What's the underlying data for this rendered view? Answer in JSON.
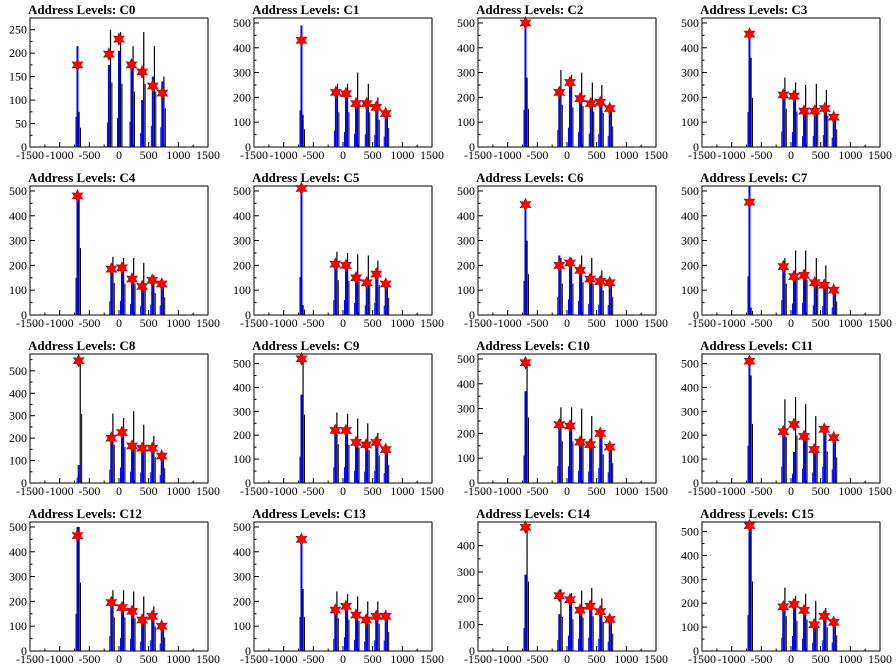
{
  "chart_data": [
    {
      "type": "histogram",
      "title": "Address Levels: C0",
      "ylim": [
        0,
        275
      ],
      "yticks": [
        0,
        50,
        100,
        150,
        200,
        250
      ],
      "xlim": [
        -1500,
        1500
      ],
      "xticks": [
        -1500,
        -1000,
        -500,
        0,
        500,
        1000,
        1500
      ],
      "peaks": [
        {
          "x": -700,
          "blue": 215,
          "black": 75,
          "marker": 175
        },
        {
          "x": -170,
          "blue": 175,
          "black": 250,
          "marker": 198
        },
        {
          "x": 0,
          "blue": 205,
          "black": 245,
          "marker": 230
        },
        {
          "x": 210,
          "blue": 180,
          "black": 215,
          "marker": 175
        },
        {
          "x": 390,
          "blue": 100,
          "black": 245,
          "marker": 160
        },
        {
          "x": 570,
          "blue": 150,
          "black": 215,
          "marker": 130
        },
        {
          "x": 730,
          "blue": 140,
          "black": 150,
          "marker": 115
        }
      ]
    },
    {
      "type": "histogram",
      "title": "Address Levels: C1",
      "ylim": [
        0,
        520
      ],
      "yticks": [
        0,
        100,
        200,
        300,
        400,
        500
      ],
      "xlim": [
        -1500,
        1500
      ],
      "xticks": [
        -1500,
        -1000,
        -500,
        0,
        500,
        1000,
        1500
      ],
      "peaks": [
        {
          "x": -700,
          "blue": 490,
          "black": 130,
          "marker": 430
        },
        {
          "x": -120,
          "blue": 220,
          "black": 255,
          "marker": 220
        },
        {
          "x": 50,
          "blue": 200,
          "black": 255,
          "marker": 215
        },
        {
          "x": 220,
          "blue": 180,
          "black": 300,
          "marker": 175
        },
        {
          "x": 400,
          "blue": 170,
          "black": 255,
          "marker": 175
        },
        {
          "x": 560,
          "blue": 160,
          "black": 200,
          "marker": 160
        },
        {
          "x": 720,
          "blue": 140,
          "black": 140,
          "marker": 135
        }
      ]
    },
    {
      "type": "histogram",
      "title": "Address Levels: C2",
      "ylim": [
        0,
        520
      ],
      "yticks": [
        0,
        100,
        200,
        300,
        400,
        500
      ],
      "xlim": [
        -1500,
        1500
      ],
      "xticks": [
        -1500,
        -1000,
        -500,
        0,
        500,
        1000,
        1500
      ],
      "peaks": [
        {
          "x": -700,
          "blue": 500,
          "black": 280,
          "marker": 500
        },
        {
          "x": -130,
          "blue": 230,
          "black": 310,
          "marker": 220
        },
        {
          "x": 50,
          "blue": 260,
          "black": 290,
          "marker": 260
        },
        {
          "x": 220,
          "blue": 200,
          "black": 300,
          "marker": 195
        },
        {
          "x": 400,
          "blue": 180,
          "black": 260,
          "marker": 175
        },
        {
          "x": 560,
          "blue": 175,
          "black": 250,
          "marker": 180
        },
        {
          "x": 720,
          "blue": 150,
          "black": 150,
          "marker": 155
        }
      ]
    },
    {
      "type": "histogram",
      "title": "Address Levels: C3",
      "ylim": [
        0,
        520
      ],
      "yticks": [
        0,
        100,
        200,
        300,
        400,
        500
      ],
      "xlim": [
        -1500,
        1500
      ],
      "xticks": [
        -1500,
        -1000,
        -500,
        0,
        500,
        1000,
        1500
      ],
      "peaks": [
        {
          "x": -700,
          "blue": 470,
          "black": 360,
          "marker": 455
        },
        {
          "x": -130,
          "blue": 210,
          "black": 280,
          "marker": 210
        },
        {
          "x": 50,
          "blue": 200,
          "black": 260,
          "marker": 205
        },
        {
          "x": 220,
          "blue": 145,
          "black": 250,
          "marker": 145
        },
        {
          "x": 400,
          "blue": 150,
          "black": 255,
          "marker": 145
        },
        {
          "x": 570,
          "blue": 160,
          "black": 230,
          "marker": 155
        },
        {
          "x": 720,
          "blue": 125,
          "black": 130,
          "marker": 120
        }
      ]
    },
    {
      "type": "histogram",
      "title": "Address Levels: C4",
      "ylim": [
        0,
        520
      ],
      "yticks": [
        0,
        100,
        200,
        300,
        400,
        500
      ],
      "xlim": [
        -1500,
        1500
      ],
      "xticks": [
        -1500,
        -1000,
        -500,
        0,
        500,
        1000,
        1500
      ],
      "peaks": [
        {
          "x": -700,
          "blue": 500,
          "black": 490,
          "marker": 480
        },
        {
          "x": -130,
          "blue": 185,
          "black": 235,
          "marker": 185
        },
        {
          "x": 50,
          "blue": 190,
          "black": 230,
          "marker": 190
        },
        {
          "x": 220,
          "blue": 150,
          "black": 230,
          "marker": 145
        },
        {
          "x": 390,
          "blue": 120,
          "black": 210,
          "marker": 115
        },
        {
          "x": 560,
          "blue": 140,
          "black": 160,
          "marker": 140
        },
        {
          "x": 720,
          "blue": 130,
          "black": 130,
          "marker": 125
        }
      ]
    },
    {
      "type": "histogram",
      "title": "Address Levels: C5",
      "ylim": [
        0,
        520
      ],
      "yticks": [
        0,
        100,
        200,
        300,
        400,
        500
      ],
      "xlim": [
        -1500,
        1500
      ],
      "xticks": [
        -1500,
        -1000,
        -500,
        0,
        500,
        1000,
        1500
      ],
      "peaks": [
        {
          "x": -700,
          "blue": 510,
          "black": 40,
          "marker": 510
        },
        {
          "x": -130,
          "blue": 200,
          "black": 255,
          "marker": 205
        },
        {
          "x": 50,
          "blue": 200,
          "black": 250,
          "marker": 200
        },
        {
          "x": 220,
          "blue": 160,
          "black": 245,
          "marker": 150
        },
        {
          "x": 400,
          "blue": 130,
          "black": 240,
          "marker": 130
        },
        {
          "x": 560,
          "blue": 165,
          "black": 220,
          "marker": 165
        },
        {
          "x": 720,
          "blue": 125,
          "black": 125,
          "marker": 125
        }
      ]
    },
    {
      "type": "histogram",
      "title": "Address Levels: C6",
      "ylim": [
        0,
        520
      ],
      "yticks": [
        0,
        100,
        200,
        300,
        400,
        500
      ],
      "xlim": [
        -1500,
        1500
      ],
      "xticks": [
        -1500,
        -1000,
        -500,
        0,
        500,
        1000,
        1500
      ],
      "peaks": [
        {
          "x": -700,
          "blue": 460,
          "black": 300,
          "marker": 445
        },
        {
          "x": -130,
          "blue": 240,
          "black": 230,
          "marker": 200
        },
        {
          "x": 50,
          "blue": 210,
          "black": 230,
          "marker": 210
        },
        {
          "x": 220,
          "blue": 190,
          "black": 240,
          "marker": 180
        },
        {
          "x": 390,
          "blue": 150,
          "black": 230,
          "marker": 145
        },
        {
          "x": 560,
          "blue": 140,
          "black": 180,
          "marker": 135
        },
        {
          "x": 720,
          "blue": 135,
          "black": 135,
          "marker": 130
        }
      ]
    },
    {
      "type": "histogram",
      "title": "Address Levels: C7",
      "ylim": [
        0,
        520
      ],
      "yticks": [
        0,
        100,
        200,
        300,
        400,
        500
      ],
      "xlim": [
        -1500,
        1500
      ],
      "xticks": [
        -1500,
        -1000,
        -500,
        0,
        500,
        1000,
        1500
      ],
      "peaks": [
        {
          "x": -700,
          "blue": 520,
          "black": 30,
          "marker": 455
        },
        {
          "x": -130,
          "blue": 200,
          "black": 230,
          "marker": 195
        },
        {
          "x": 50,
          "blue": 155,
          "black": 260,
          "marker": 155
        },
        {
          "x": 220,
          "blue": 165,
          "black": 260,
          "marker": 160
        },
        {
          "x": 400,
          "blue": 130,
          "black": 230,
          "marker": 130
        },
        {
          "x": 560,
          "blue": 120,
          "black": 200,
          "marker": 120
        },
        {
          "x": 720,
          "blue": 100,
          "black": 100,
          "marker": 100
        }
      ]
    },
    {
      "type": "histogram",
      "title": "Address Levels: C8",
      "ylim": [
        0,
        575
      ],
      "yticks": [
        0,
        100,
        200,
        300,
        400,
        500
      ],
      "xlim": [
        -1500,
        1500
      ],
      "xticks": [
        -1500,
        -1000,
        -500,
        0,
        500,
        1000,
        1500
      ],
      "peaks": [
        {
          "x": -680,
          "blue": 80,
          "black": 560,
          "marker": 545
        },
        {
          "x": -130,
          "blue": 200,
          "black": 310,
          "marker": 200
        },
        {
          "x": 50,
          "blue": 230,
          "black": 290,
          "marker": 225
        },
        {
          "x": 220,
          "blue": 170,
          "black": 320,
          "marker": 165
        },
        {
          "x": 390,
          "blue": 155,
          "black": 260,
          "marker": 155
        },
        {
          "x": 560,
          "blue": 160,
          "black": 210,
          "marker": 155
        },
        {
          "x": 720,
          "blue": 120,
          "black": 120,
          "marker": 120
        }
      ]
    },
    {
      "type": "histogram",
      "title": "Address Levels: C9",
      "ylim": [
        0,
        540
      ],
      "yticks": [
        0,
        100,
        200,
        300,
        400,
        500
      ],
      "xlim": [
        -1500,
        1500
      ],
      "xticks": [
        -1500,
        -1000,
        -500,
        0,
        500,
        1000,
        1500
      ],
      "peaks": [
        {
          "x": -700,
          "blue": 370,
          "black": 520,
          "marker": 520
        },
        {
          "x": -130,
          "blue": 220,
          "black": 295,
          "marker": 220
        },
        {
          "x": 50,
          "blue": 220,
          "black": 290,
          "marker": 220
        },
        {
          "x": 220,
          "blue": 170,
          "black": 270,
          "marker": 170
        },
        {
          "x": 390,
          "blue": 160,
          "black": 250,
          "marker": 160
        },
        {
          "x": 560,
          "blue": 170,
          "black": 210,
          "marker": 170
        },
        {
          "x": 720,
          "blue": 140,
          "black": 140,
          "marker": 140
        }
      ]
    },
    {
      "type": "histogram",
      "title": "Address Levels: C10",
      "ylim": [
        0,
        520
      ],
      "yticks": [
        0,
        100,
        200,
        300,
        400,
        500
      ],
      "xlim": [
        -1500,
        1500
      ],
      "xticks": [
        -1500,
        -1000,
        -500,
        0,
        500,
        1000,
        1500
      ],
      "peaks": [
        {
          "x": -700,
          "blue": 370,
          "black": 480,
          "marker": 485
        },
        {
          "x": -130,
          "blue": 230,
          "black": 305,
          "marker": 235
        },
        {
          "x": 50,
          "blue": 225,
          "black": 305,
          "marker": 230
        },
        {
          "x": 220,
          "blue": 165,
          "black": 300,
          "marker": 165
        },
        {
          "x": 390,
          "blue": 155,
          "black": 270,
          "marker": 155
        },
        {
          "x": 560,
          "blue": 200,
          "black": 210,
          "marker": 200
        },
        {
          "x": 720,
          "blue": 145,
          "black": 145,
          "marker": 145
        }
      ]
    },
    {
      "type": "histogram",
      "title": "Address Levels: C11",
      "ylim": [
        0,
        540
      ],
      "yticks": [
        0,
        100,
        200,
        300,
        400,
        500
      ],
      "xlim": [
        -1500,
        1500
      ],
      "xticks": [
        -1500,
        -1000,
        -500,
        0,
        500,
        1000,
        1500
      ],
      "peaks": [
        {
          "x": -700,
          "blue": 520,
          "black": 450,
          "marker": 510
        },
        {
          "x": -130,
          "blue": 230,
          "black": 350,
          "marker": 215
        },
        {
          "x": 50,
          "blue": 130,
          "black": 360,
          "marker": 245
        },
        {
          "x": 220,
          "blue": 200,
          "black": 330,
          "marker": 195
        },
        {
          "x": 390,
          "blue": 145,
          "black": 280,
          "marker": 140
        },
        {
          "x": 560,
          "blue": 230,
          "black": 240,
          "marker": 225
        },
        {
          "x": 720,
          "blue": 190,
          "black": 195,
          "marker": 190
        }
      ]
    },
    {
      "type": "histogram",
      "title": "Address Levels: C12",
      "ylim": [
        0,
        520
      ],
      "yticks": [
        0,
        100,
        200,
        300,
        400,
        500
      ],
      "xlim": [
        -1500,
        1500
      ],
      "xticks": [
        -1500,
        -1000,
        -500,
        0,
        500,
        1000,
        1500
      ],
      "peaks": [
        {
          "x": -700,
          "blue": 500,
          "black": 500,
          "marker": 465
        },
        {
          "x": -130,
          "blue": 200,
          "black": 245,
          "marker": 195
        },
        {
          "x": 50,
          "blue": 175,
          "black": 245,
          "marker": 175
        },
        {
          "x": 220,
          "blue": 165,
          "black": 240,
          "marker": 160
        },
        {
          "x": 390,
          "blue": 125,
          "black": 220,
          "marker": 125
        },
        {
          "x": 560,
          "blue": 145,
          "black": 180,
          "marker": 140
        },
        {
          "x": 720,
          "blue": 100,
          "black": 100,
          "marker": 100
        }
      ]
    },
    {
      "type": "histogram",
      "title": "Address Levels: C13",
      "ylim": [
        0,
        520
      ],
      "yticks": [
        0,
        100,
        200,
        300,
        400,
        500
      ],
      "xlim": [
        -1500,
        1500
      ],
      "xticks": [
        -1500,
        -1000,
        -500,
        0,
        500,
        1000,
        1500
      ],
      "peaks": [
        {
          "x": -700,
          "blue": 460,
          "black": 250,
          "marker": 450
        },
        {
          "x": -130,
          "blue": 165,
          "black": 240,
          "marker": 165
        },
        {
          "x": 50,
          "blue": 185,
          "black": 230,
          "marker": 180
        },
        {
          "x": 220,
          "blue": 150,
          "black": 220,
          "marker": 145
        },
        {
          "x": 390,
          "blue": 130,
          "black": 200,
          "marker": 125
        },
        {
          "x": 560,
          "blue": 145,
          "black": 200,
          "marker": 140
        },
        {
          "x": 720,
          "blue": 140,
          "black": 140,
          "marker": 140
        }
      ]
    },
    {
      "type": "histogram",
      "title": "Address Levels: C14",
      "ylim": [
        0,
        490
      ],
      "yticks": [
        0,
        100,
        200,
        300,
        400
      ],
      "xlim": [
        -1500,
        1500
      ],
      "xticks": [
        -1500,
        -1000,
        -500,
        0,
        500,
        1000,
        1500
      ],
      "peaks": [
        {
          "x": -700,
          "blue": 290,
          "black": 480,
          "marker": 470
        },
        {
          "x": -130,
          "blue": 140,
          "black": 235,
          "marker": 210
        },
        {
          "x": 50,
          "blue": 195,
          "black": 220,
          "marker": 195
        },
        {
          "x": 220,
          "blue": 155,
          "black": 230,
          "marker": 155
        },
        {
          "x": 390,
          "blue": 170,
          "black": 240,
          "marker": 170
        },
        {
          "x": 560,
          "blue": 155,
          "black": 200,
          "marker": 150
        },
        {
          "x": 720,
          "blue": 120,
          "black": 120,
          "marker": 120
        }
      ]
    },
    {
      "type": "histogram",
      "title": "Address Levels: C15",
      "ylim": [
        0,
        540
      ],
      "yticks": [
        0,
        100,
        200,
        300,
        400,
        500
      ],
      "xlim": [
        -1500,
        1500
      ],
      "xticks": [
        -1500,
        -1000,
        -500,
        0,
        500,
        1000,
        1500
      ],
      "peaks": [
        {
          "x": -700,
          "blue": 500,
          "black": 530,
          "marker": 525
        },
        {
          "x": -130,
          "blue": 185,
          "black": 265,
          "marker": 185
        },
        {
          "x": 50,
          "blue": 210,
          "black": 230,
          "marker": 195
        },
        {
          "x": 220,
          "blue": 170,
          "black": 240,
          "marker": 170
        },
        {
          "x": 390,
          "blue": 115,
          "black": 210,
          "marker": 110
        },
        {
          "x": 560,
          "blue": 150,
          "black": 180,
          "marker": 145
        },
        {
          "x": 720,
          "blue": 120,
          "black": 120,
          "marker": 120
        }
      ]
    }
  ],
  "colors": {
    "histogram_blue": "#0000ff",
    "histogram_black": "#000000",
    "marker_fill": "#ff0000",
    "marker_edge": "#aa0000"
  }
}
